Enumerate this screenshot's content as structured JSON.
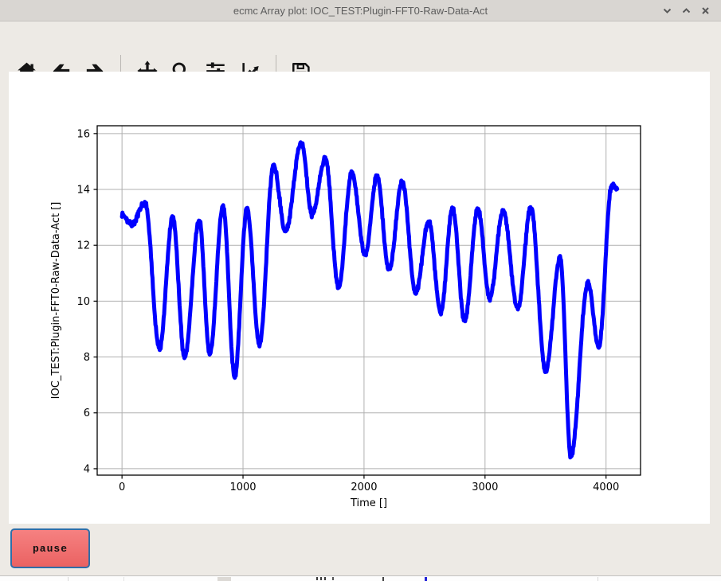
{
  "window": {
    "title": "ecmc Array plot: IOC_TEST:Plugin-FFT0-Raw-Data-Act",
    "controls": [
      "minimize",
      "maximize",
      "close"
    ]
  },
  "toolbar": {
    "icons": [
      "home",
      "back",
      "forward",
      "pan",
      "zoom",
      "configure-subplots",
      "edit-plot",
      "save"
    ]
  },
  "controls": {
    "pause_label": "pause"
  },
  "colors": {
    "data_line": "#0000ff",
    "grid": "#b0b0b0",
    "spine": "#000000",
    "pause_fill_top": "#f68181",
    "pause_fill_bottom": "#ea6262",
    "pause_border": "#2f6ea8",
    "chrome_bg": "#edeae5",
    "titlebar_bg": "#d9d6d2"
  },
  "chart_data": {
    "type": "line",
    "title": "",
    "xlabel": "Time []",
    "ylabel": "IOC_TEST:Plugin-FFT0-Raw-Data-Act []",
    "xticks": [
      0,
      1000,
      2000,
      3000,
      4000
    ],
    "yticks": [
      4,
      6,
      8,
      10,
      12,
      14,
      16
    ],
    "xlim": [
      -205,
      4285
    ],
    "ylim": [
      3.77,
      16.28
    ],
    "grid": true,
    "legend": false,
    "line_color": "#0000ff",
    "series": [
      {
        "name": "IOC_TEST:Plugin-FFT0-Raw-Data-Act",
        "keypoints": [
          [
            0,
            13.1
          ],
          [
            80,
            12.75
          ],
          [
            190,
            13.5
          ],
          [
            310,
            8.3
          ],
          [
            419,
            13.0
          ],
          [
            517,
            8.0
          ],
          [
            638,
            12.9
          ],
          [
            725,
            8.1
          ],
          [
            835,
            13.4
          ],
          [
            931,
            7.3
          ],
          [
            1032,
            13.3
          ],
          [
            1136,
            8.45
          ],
          [
            1252,
            14.85
          ],
          [
            1351,
            12.5
          ],
          [
            1482,
            15.7
          ],
          [
            1570,
            13.1
          ],
          [
            1680,
            15.1
          ],
          [
            1789,
            10.5
          ],
          [
            1899,
            14.6
          ],
          [
            2009,
            11.65
          ],
          [
            2107,
            14.5
          ],
          [
            2206,
            11.1
          ],
          [
            2316,
            14.3
          ],
          [
            2426,
            10.3
          ],
          [
            2535,
            12.85
          ],
          [
            2634,
            9.6
          ],
          [
            2732,
            13.35
          ],
          [
            2831,
            9.3
          ],
          [
            2941,
            13.3
          ],
          [
            3039,
            10.1
          ],
          [
            3149,
            13.25
          ],
          [
            3270,
            9.75
          ],
          [
            3379,
            13.35
          ],
          [
            3500,
            7.5
          ],
          [
            3621,
            11.55
          ],
          [
            3709,
            4.45
          ],
          [
            3851,
            10.65
          ],
          [
            3939,
            8.35
          ],
          [
            4048,
            14.15
          ],
          [
            4095,
            14.0
          ]
        ]
      }
    ]
  }
}
